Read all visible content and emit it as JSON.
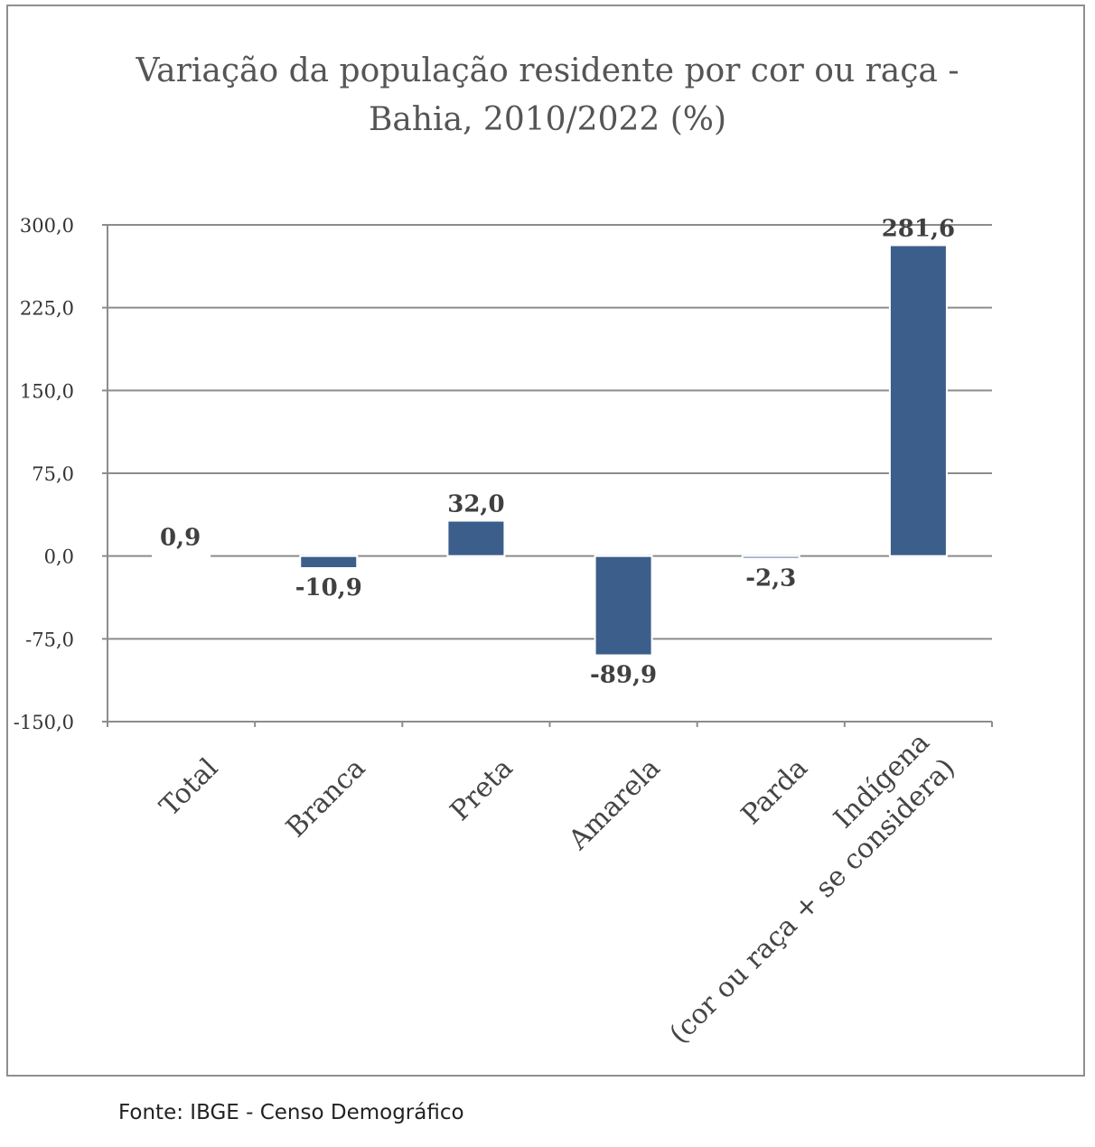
{
  "chart_data": {
    "type": "bar",
    "title_lines": [
      "Variação da população residente por cor ou raça -",
      "Bahia, 2010/2022 (%)"
    ],
    "categories": [
      [
        "Total"
      ],
      [
        "Branca"
      ],
      [
        "Preta"
      ],
      [
        "Amarela"
      ],
      [
        "Parda"
      ],
      [
        "Indígena",
        "(cor ou raça + se considera)"
      ]
    ],
    "values": [
      0.9,
      -10.9,
      32.0,
      -89.9,
      -2.3,
      281.6
    ],
    "value_labels": [
      "0,9",
      "-10,9",
      "32,0",
      "-89,9",
      "-2,3",
      "281,6"
    ],
    "y_ticks": [
      300,
      225,
      150,
      75,
      0,
      -75,
      -150
    ],
    "y_tick_labels": [
      "300,0",
      "225,0",
      "150,0",
      "75,0",
      "0,0",
      "-75,0",
      "-150,0"
    ],
    "ylim": [
      -150,
      300
    ],
    "grid": true,
    "bar_color": "#3c5e8b",
    "xlabel": "",
    "ylabel": ""
  },
  "source": "Fonte: IBGE - Censo Demográfico"
}
